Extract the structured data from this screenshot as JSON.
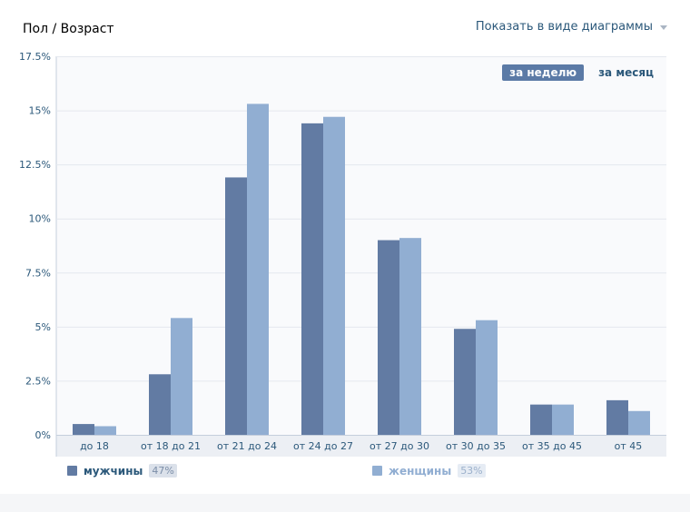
{
  "header": {
    "title": "Пол / Возраст",
    "view_toggle_label": "Показать в виде диаграммы"
  },
  "period_switch": {
    "week_label": "за неделю",
    "month_label": "за месяц",
    "active": "week"
  },
  "legend": {
    "men_label": "мужчины",
    "men_pct": "47%",
    "women_label": "женщины",
    "women_pct": "53%"
  },
  "chart_data": {
    "type": "bar",
    "title": "Пол / Возраст",
    "categories": [
      "до 18",
      "от 18 до 21",
      "от 21 до 24",
      "от 24 до 27",
      "от 27 до 30",
      "от 30 до 35",
      "от 35 до 45",
      "от 45"
    ],
    "series": [
      {
        "name": "мужчины",
        "color": "#627ba3",
        "values": [
          0.5,
          2.8,
          11.9,
          14.4,
          9.0,
          4.9,
          1.4,
          1.6
        ]
      },
      {
        "name": "женщины",
        "color": "#91aed2",
        "values": [
          0.4,
          5.4,
          15.3,
          14.7,
          9.1,
          5.3,
          1.4,
          1.1
        ]
      }
    ],
    "yticks": [
      "0%",
      "2.5%",
      "5%",
      "7.5%",
      "10%",
      "12.5%",
      "15%",
      "17.5%"
    ],
    "ylim": [
      0,
      17.5
    ],
    "grid": true,
    "legend_position": "bottom-left"
  }
}
